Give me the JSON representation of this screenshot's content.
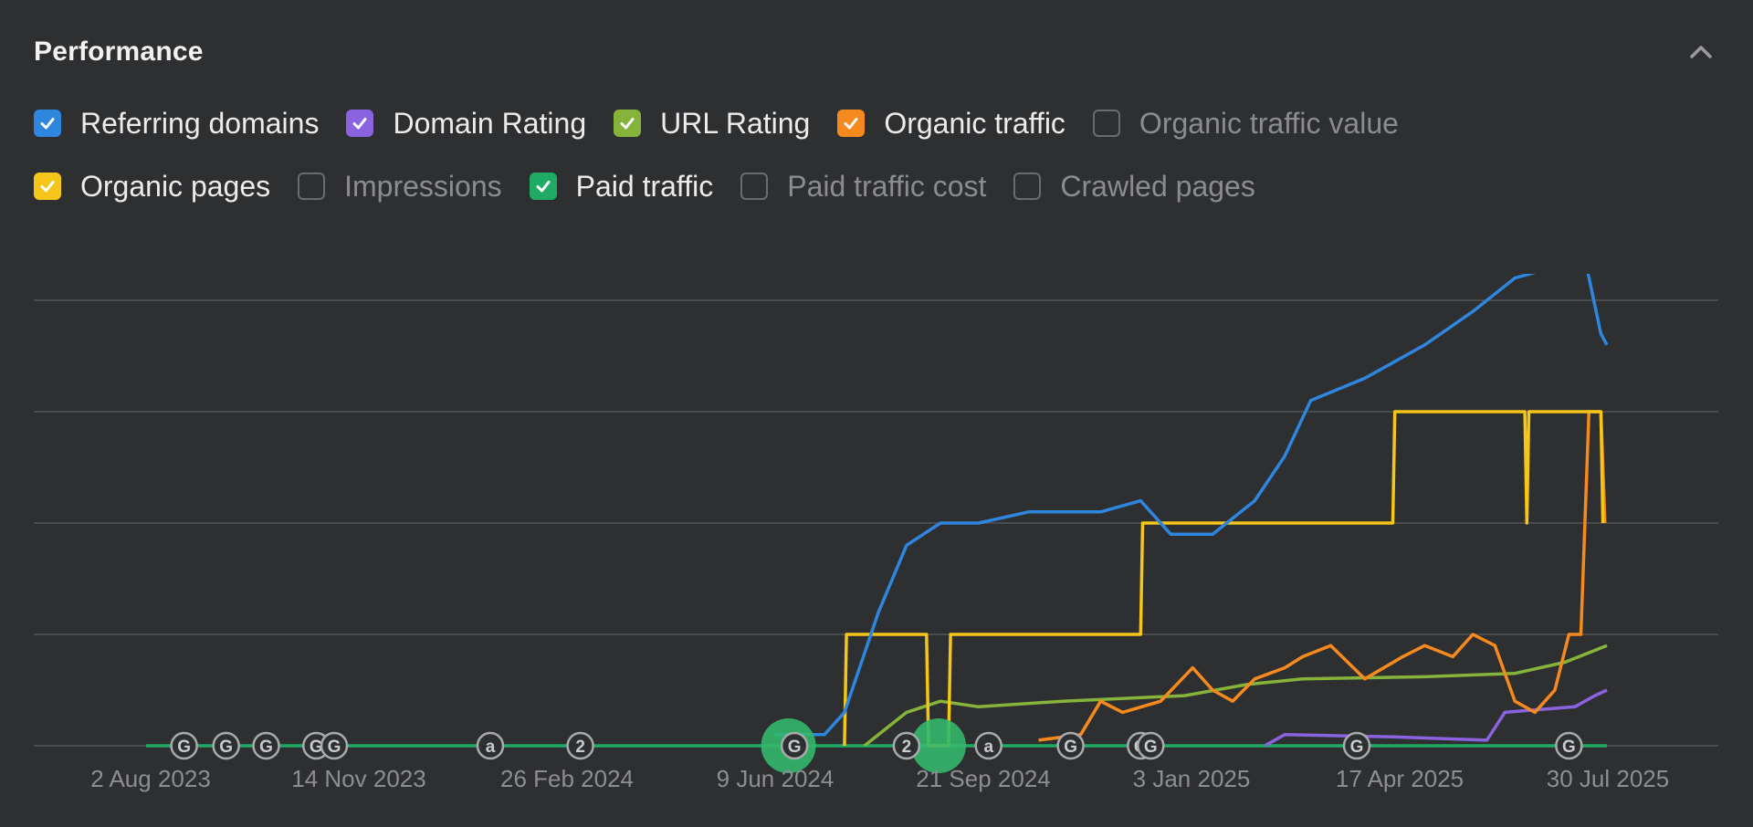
{
  "panel": {
    "title": "Performance"
  },
  "legend": [
    [
      {
        "label": "Referring domains",
        "checked": true,
        "color": "#2f86de"
      },
      {
        "label": "Domain Rating",
        "checked": true,
        "color": "#8a63e0"
      },
      {
        "label": "URL Rating",
        "checked": true,
        "color": "#86b43a"
      },
      {
        "label": "Organic traffic",
        "checked": true,
        "color": "#f68a1e"
      },
      {
        "label": "Organic traffic value",
        "checked": false,
        "color": "#8b8c90"
      }
    ],
    [
      {
        "label": "Organic pages",
        "checked": true,
        "color": "#f5c518"
      },
      {
        "label": "Impressions",
        "checked": false,
        "color": "#8b8c90"
      },
      {
        "label": "Paid traffic",
        "checked": true,
        "color": "#1fab66"
      },
      {
        "label": "Paid traffic cost",
        "checked": false,
        "color": "#8b8c90"
      },
      {
        "label": "Crawled pages",
        "checked": false,
        "color": "#8b8c90"
      }
    ]
  ],
  "chart_data": {
    "type": "line",
    "x_ticks": [
      "2 Aug 2023",
      "14 Nov 2023",
      "26 Feb 2024",
      "9 Jun 2024",
      "21 Sep 2024",
      "3 Jan 2025",
      "17 Apr 2025",
      "30 Jul 2025"
    ],
    "x_range": [
      "2023-08-01",
      "2025-07-31"
    ],
    "grid": true,
    "y_axis_labels": "none",
    "series": [
      {
        "name": "Referring domains",
        "color": "#2f86de",
        "points": [
          [
            "2024-06-10",
            0.1
          ],
          [
            "2024-07-05",
            0.1
          ],
          [
            "2024-07-15",
            0.3
          ],
          [
            "2024-08-01",
            1.2
          ],
          [
            "2024-08-15",
            1.8
          ],
          [
            "2024-09-01",
            2.0
          ],
          [
            "2024-09-20",
            2.0
          ],
          [
            "2024-10-15",
            2.1
          ],
          [
            "2024-11-20",
            2.1
          ],
          [
            "2024-12-10",
            2.2
          ],
          [
            "2024-12-25",
            1.9
          ],
          [
            "2025-01-15",
            1.9
          ],
          [
            "2025-02-05",
            2.2
          ],
          [
            "2025-02-20",
            2.6
          ],
          [
            "2025-03-05",
            3.1
          ],
          [
            "2025-04-01",
            3.3
          ],
          [
            "2025-05-01",
            3.6
          ],
          [
            "2025-05-25",
            3.9
          ],
          [
            "2025-06-15",
            4.2
          ],
          [
            "2025-07-05",
            4.3
          ],
          [
            "2025-07-15",
            4.8
          ],
          [
            "2025-07-28",
            3.7
          ],
          [
            "2025-07-31",
            3.6
          ]
        ]
      },
      {
        "name": "Organic pages",
        "color": "#f5c518",
        "points": [
          [
            "2024-07-15",
            0
          ],
          [
            "2024-07-16",
            1.0
          ],
          [
            "2024-08-25",
            1.0
          ],
          [
            "2024-08-26",
            0
          ],
          [
            "2024-09-05",
            0
          ],
          [
            "2024-09-06",
            1.0
          ],
          [
            "2024-12-10",
            1.0
          ],
          [
            "2024-12-11",
            2.0
          ],
          [
            "2025-04-15",
            2.0
          ],
          [
            "2025-04-16",
            3.0
          ],
          [
            "2025-06-20",
            3.0
          ],
          [
            "2025-06-21",
            2.0
          ],
          [
            "2025-06-22",
            3.0
          ],
          [
            "2025-07-28",
            3.0
          ],
          [
            "2025-07-29",
            2.0
          ]
        ]
      },
      {
        "name": "Organic traffic",
        "color": "#f68a1e",
        "points": [
          [
            "2024-10-20",
            0.05
          ],
          [
            "2024-11-10",
            0.1
          ],
          [
            "2024-11-20",
            0.4
          ],
          [
            "2024-12-01",
            0.3
          ],
          [
            "2024-12-20",
            0.4
          ],
          [
            "2025-01-05",
            0.7
          ],
          [
            "2025-01-15",
            0.5
          ],
          [
            "2025-01-25",
            0.4
          ],
          [
            "2025-02-05",
            0.6
          ],
          [
            "2025-02-20",
            0.7
          ],
          [
            "2025-03-01",
            0.8
          ],
          [
            "2025-03-15",
            0.9
          ],
          [
            "2025-04-01",
            0.6
          ],
          [
            "2025-04-20",
            0.8
          ],
          [
            "2025-05-01",
            0.9
          ],
          [
            "2025-05-15",
            0.8
          ],
          [
            "2025-05-25",
            1.0
          ],
          [
            "2025-06-05",
            0.9
          ],
          [
            "2025-06-15",
            0.4
          ],
          [
            "2025-06-25",
            0.3
          ],
          [
            "2025-07-05",
            0.5
          ],
          [
            "2025-07-12",
            1.0
          ],
          [
            "2025-07-18",
            1.0
          ],
          [
            "2025-07-22",
            3.0
          ],
          [
            "2025-07-28",
            3.0
          ],
          [
            "2025-07-30",
            2.0
          ]
        ]
      },
      {
        "name": "URL Rating",
        "color": "#86b43a",
        "points": [
          [
            "2024-07-25",
            0
          ],
          [
            "2024-08-15",
            0.3
          ],
          [
            "2024-09-01",
            0.4
          ],
          [
            "2024-09-20",
            0.35
          ],
          [
            "2024-11-01",
            0.4
          ],
          [
            "2025-01-01",
            0.45
          ],
          [
            "2025-02-01",
            0.55
          ],
          [
            "2025-03-01",
            0.6
          ],
          [
            "2025-05-01",
            0.62
          ],
          [
            "2025-06-15",
            0.65
          ],
          [
            "2025-07-10",
            0.75
          ],
          [
            "2025-07-31",
            0.9
          ]
        ]
      },
      {
        "name": "Domain Rating",
        "color": "#8a63e0",
        "points": [
          [
            "2025-02-10",
            0
          ],
          [
            "2025-02-20",
            0.1
          ],
          [
            "2025-04-15",
            0.08
          ],
          [
            "2025-06-01",
            0.05
          ],
          [
            "2025-06-10",
            0.3
          ],
          [
            "2025-07-15",
            0.35
          ],
          [
            "2025-07-25",
            0.45
          ],
          [
            "2025-07-31",
            0.5
          ]
        ]
      },
      {
        "name": "Paid traffic",
        "color": "#1fab66",
        "points": [
          [
            "2023-08-01",
            0
          ],
          [
            "2025-07-31",
            0
          ]
        ]
      }
    ],
    "events": [
      {
        "label": "G",
        "date": "2023-08-20"
      },
      {
        "label": "G",
        "date": "2023-09-10"
      },
      {
        "label": "G",
        "date": "2023-09-30"
      },
      {
        "label": "G",
        "date": "2023-10-25"
      },
      {
        "label": "G",
        "date": "2023-11-03"
      },
      {
        "label": "a",
        "date": "2024-01-20"
      },
      {
        "label": "2",
        "date": "2024-03-05"
      },
      {
        "label": "G",
        "date": "2024-06-20"
      },
      {
        "label": "2",
        "date": "2024-08-15"
      },
      {
        "label": "a",
        "date": "2024-09-25"
      },
      {
        "label": "G",
        "date": "2024-11-05"
      },
      {
        "label": "G",
        "date": "2024-12-10"
      },
      {
        "label": "G",
        "date": "2024-12-15"
      },
      {
        "label": "G",
        "date": "2025-03-28"
      },
      {
        "label": "G",
        "date": "2025-07-12"
      }
    ],
    "highlights": [
      "2024-06-17",
      "2024-08-31"
    ]
  }
}
